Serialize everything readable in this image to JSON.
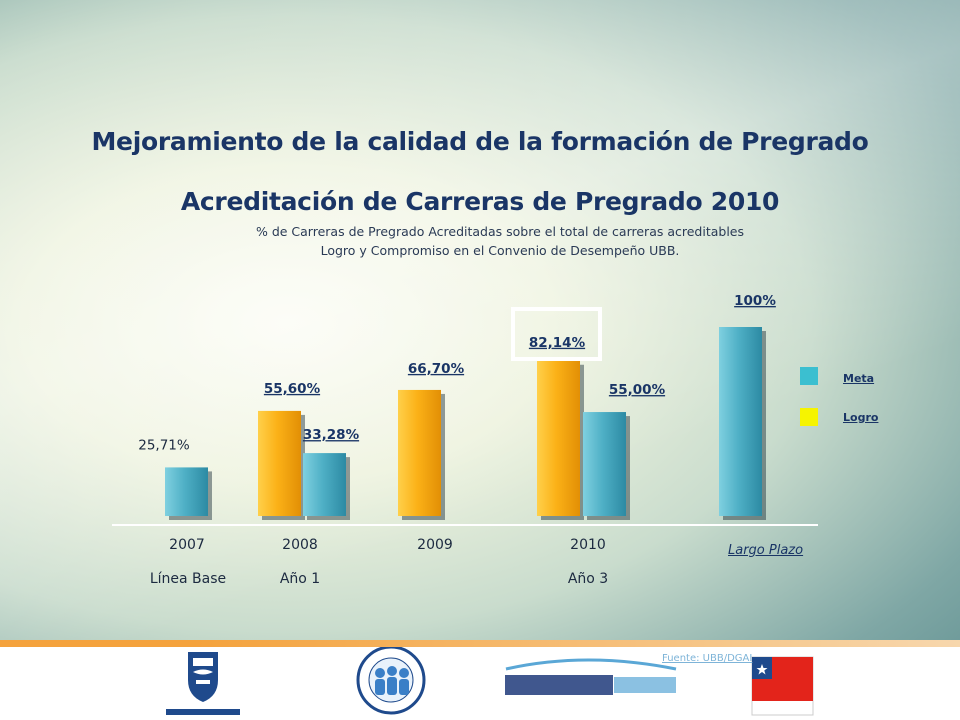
{
  "title": "Mejoramiento de la calidad de la formación de Pregrado",
  "chart_data": {
    "type": "bar",
    "title": "Acreditación de Carreras de Pregrado 2010",
    "subtitle_lines": [
      "% de Carreras de Pregrado Acreditadas sobre el total de carreras acreditables",
      "Logro y Compromiso en el Convenio de Desempeño UBB."
    ],
    "groups": [
      {
        "year": "2007",
        "period": "Línea Base",
        "bars": [
          {
            "series": "Meta",
            "value": 25.71,
            "label": "25,71%"
          }
        ]
      },
      {
        "year": "2008",
        "period": "Año 1",
        "bars": [
          {
            "series": "Logro",
            "value": 55.6,
            "label": "55,60%"
          },
          {
            "series": "Meta",
            "value": 33.28,
            "label": "33,28%"
          }
        ]
      },
      {
        "year": "2009",
        "period": "",
        "bars": [
          {
            "series": "Logro",
            "value": 66.7,
            "label": "66,70%"
          }
        ]
      },
      {
        "year": "2010",
        "period": "Año 3",
        "bars": [
          {
            "series": "Logro",
            "value": 82.14,
            "label": "82,14%",
            "highlighted": true
          },
          {
            "series": "Meta",
            "value": 55.0,
            "label": "55,00%"
          }
        ]
      },
      {
        "year": "Largo Plazo",
        "period": "",
        "bars": [
          {
            "series": "Meta",
            "value": 100,
            "label": "100%"
          }
        ]
      }
    ],
    "ylim": [
      0,
      100
    ],
    "legend": {
      "placement": "right",
      "items": [
        {
          "name": "Meta",
          "color": "#3bbfd0"
        },
        {
          "name": "Logro",
          "color": "#f6f400"
        }
      ]
    },
    "colors": {
      "Meta": "#4fb0c6",
      "Logro": "#fbb117"
    }
  },
  "footer": {
    "source": "Fuente: UBB/DGAI"
  }
}
